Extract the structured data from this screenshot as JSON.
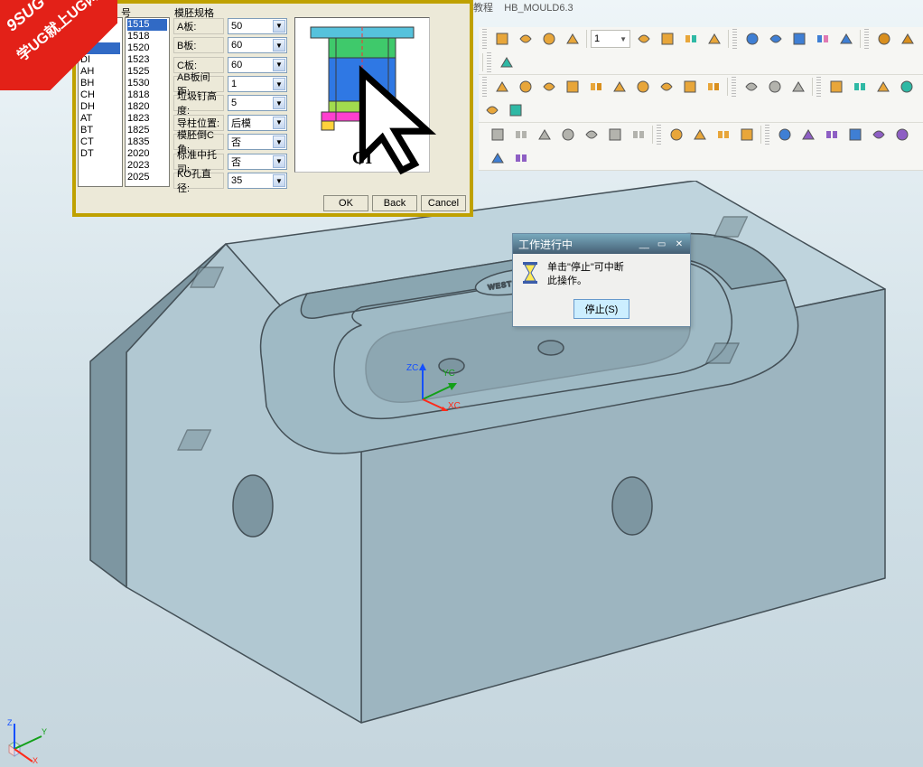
{
  "title_strip": {
    "label_tutorial": "教程",
    "module": "HB_MOULD6.3"
  },
  "watermark": {
    "brand": "9SUG",
    "text": "学UG就上UG网"
  },
  "mold_dialog": {
    "headers": {
      "col1": "号",
      "col2": "模胚规格"
    },
    "type_list": {
      "items": [
        "AI",
        "BI",
        "CI",
        "DI",
        "AH",
        "BH",
        "CH",
        "DH",
        "AT",
        "BT",
        "CT",
        "DT"
      ],
      "selected_index": 2
    },
    "size_list": {
      "items": [
        "1515",
        "1518",
        "1520",
        "1523",
        "1525",
        "1530",
        "",
        "1818",
        "1820",
        "1823",
        "1825",
        "1835",
        "",
        "2020",
        "2023",
        "2025"
      ],
      "selected_index": 0
    },
    "params": [
      {
        "label": "A板:",
        "value": "50"
      },
      {
        "label": "B板:",
        "value": "60"
      },
      {
        "label": "C板:",
        "value": "60"
      },
      {
        "label": "AB板间距:",
        "value": "1"
      },
      {
        "label": "垃圾钉高度:",
        "value": "5"
      },
      {
        "label": "导柱位置:",
        "value": "后模"
      },
      {
        "label": "模胚倒C角:",
        "value": "否"
      },
      {
        "label": "标准中托司:",
        "value": "否"
      },
      {
        "label": "KO孔直径:",
        "value": "35"
      }
    ],
    "preview_caption": "CI",
    "schematic": {
      "colors": {
        "top_bar": "#56c2dc",
        "a_plate": "#3fc96b",
        "b_plate": "#2f78e4",
        "ejector": "#a1db4e",
        "base": "#ff3fcf",
        "feet": "#ffd23a",
        "outline": "#3a3a3a"
      }
    },
    "buttons": {
      "ok": "OK",
      "back": "Back",
      "cancel": "Cancel"
    }
  },
  "progress_dialog": {
    "title": "工作进行中",
    "msg_line1": "单击\"停止\"可中断",
    "msg_line2": "此操作。",
    "stop_button": "停止(S)"
  },
  "wcs": {
    "zc": "ZC",
    "yc": "YC",
    "xc": "XC",
    "z_color": "#1550ff",
    "y_color": "#13a019",
    "x_color": "#ff2a1a"
  },
  "corner_triad": {
    "z": "Z",
    "y": "Y",
    "x": "X",
    "z_color": "#1550ff",
    "y_color": "#13a019",
    "x_color": "#ff2a1a"
  },
  "toolbars": {
    "dropdown_value": "1",
    "icon_colors": {
      "gold": "#e8a63a",
      "gold2": "#d98f1e",
      "teal": "#2fb9a5",
      "blue": "#3f7fd4",
      "blue2": "#2f64b4",
      "green": "#4fb24f",
      "red": "#d64848",
      "purple": "#8e5fc4",
      "gray": "#b3b3ad",
      "dark": "#555",
      "pink": "#df7ab3"
    }
  },
  "model": {
    "face_light": "#b1c8d2",
    "face_med": "#9db5c0",
    "face_dark": "#7d96a1",
    "face_top": "#bfd4dd",
    "edge": "#445057",
    "cavity_wall": "#8aa6b1",
    "cavity_floor": "#9fbac5",
    "slot": "#6e8690",
    "logo_text": "WESTROBOT"
  }
}
